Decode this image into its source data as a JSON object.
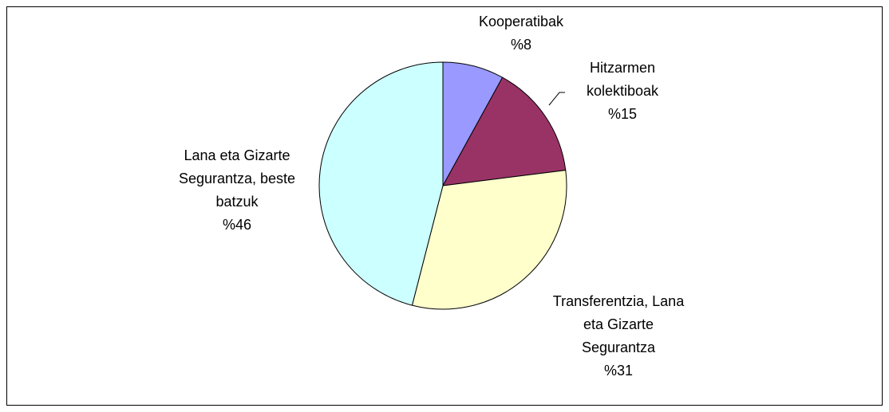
{
  "chart_data": {
    "type": "pie",
    "categories": [
      "Kooperatibak",
      "Hitzarmen kolektiboak",
      "Transferentzia, Lana eta Gizarte Segurantza",
      "Lana eta Gizarte Segurantza, beste batzuk"
    ],
    "values": [
      8,
      15,
      31,
      46
    ],
    "value_labels": [
      "%8",
      "%15",
      "%31",
      "%46"
    ],
    "colors": [
      "#9999ff",
      "#993366",
      "#ffffcc",
      "#ccffff"
    ]
  }
}
